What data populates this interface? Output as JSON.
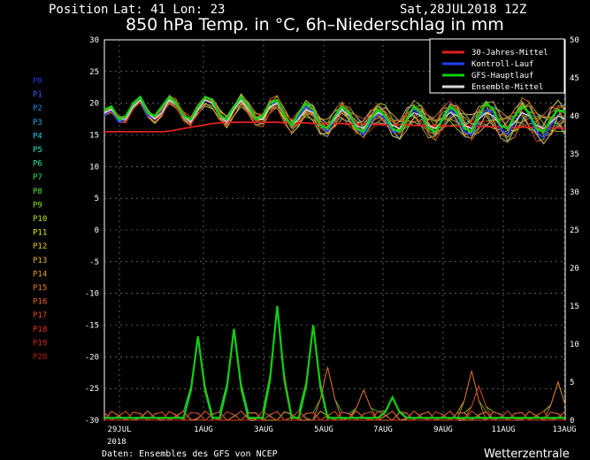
{
  "header": {
    "position_label": "Position",
    "lat_lon": "Lat: 41 Lon: 23",
    "run_time": "Sat,28JUL2018 12Z"
  },
  "footer": {
    "source": "Daten: Ensembles des GFS von NCEP",
    "brand": "Wetterzentrale"
  },
  "chart_data": {
    "type": "line",
    "title": "850 hPa Temp. in °C, 6h–Niederschlag in mm",
    "y_left": {
      "min": -30,
      "max": 30,
      "step": 5,
      "ticks": [
        "-30",
        "-25",
        "-20",
        "-15",
        "-10",
        "-5",
        "0",
        "5",
        "10",
        "15",
        "20",
        "25",
        "30"
      ]
    },
    "y_right": {
      "min": 0,
      "max": 50,
      "step": 5,
      "ticks": [
        "0",
        "5",
        "10",
        "15",
        "20",
        "25",
        "30",
        "35",
        "40",
        "45",
        "50"
      ]
    },
    "x_ticks": [
      "29JUL",
      "1AUG",
      "3AUG",
      "5AUG",
      "7AUG",
      "9AUG",
      "11AUG",
      "13AUG"
    ],
    "x_sublabel": "2018",
    "grid": true,
    "legend_position": "top-right",
    "legend": [
      {
        "label": "30-Jahres-Mittel",
        "color": "#e02020"
      },
      {
        "label": "Kontroll-Lauf",
        "color": "#2040ff"
      },
      {
        "label": "GFS-Hauptlauf",
        "color": "#10d010"
      },
      {
        "label": "Ensemble-Mittel",
        "color": "#d8d8d8"
      }
    ],
    "members": [
      {
        "label": "P0",
        "color": "#2e2ee8"
      },
      {
        "label": "P1",
        "color": "#2e5ce8"
      },
      {
        "label": "P2",
        "color": "#1f86e8"
      },
      {
        "label": "P3",
        "color": "#1fa8e8"
      },
      {
        "label": "P4",
        "color": "#1fcde8"
      },
      {
        "label": "P5",
        "color": "#1fe8cf"
      },
      {
        "label": "P6",
        "color": "#1fe88f"
      },
      {
        "label": "P7",
        "color": "#1fe84d"
      },
      {
        "label": "P8",
        "color": "#49e81f"
      },
      {
        "label": "P9",
        "color": "#86e81f"
      },
      {
        "label": "P10",
        "color": "#bce81f"
      },
      {
        "label": "P11",
        "color": "#e8e81f"
      },
      {
        "label": "P12",
        "color": "#e8cf1f"
      },
      {
        "label": "P13",
        "color": "#e8b41f"
      },
      {
        "label": "P14",
        "color": "#e89a1f"
      },
      {
        "label": "P15",
        "color": "#e8801f"
      },
      {
        "label": "P16",
        "color": "#e8661f"
      },
      {
        "label": "P17",
        "color": "#e84c1f"
      },
      {
        "label": "P18",
        "color": "#e8321f"
      },
      {
        "label": "P19",
        "color": "#d82020"
      },
      {
        "label": "P20",
        "color": "#b81818"
      }
    ],
    "series": [
      {
        "name": "30-Jahres-Mittel",
        "values": [
          15.5,
          15.5,
          15.5,
          15.5,
          15.5,
          15.5,
          15.5,
          15.5,
          15.5,
          15.6,
          15.8,
          16.0,
          16.2,
          16.4,
          16.6,
          16.8,
          16.9,
          17.0,
          17.0,
          17.0,
          17.0,
          17.0,
          17.0,
          17.0,
          17.0,
          16.9,
          16.9,
          16.9,
          16.9,
          16.8,
          16.8,
          16.8,
          16.8,
          16.8,
          16.7,
          16.7,
          16.7,
          16.7,
          16.6,
          16.6,
          16.6,
          16.6,
          16.6,
          16.5,
          16.5,
          16.5,
          16.5,
          16.5,
          16.4,
          16.4,
          16.4,
          16.4,
          16.3,
          16.3,
          16.3,
          16.3,
          16.2,
          16.2,
          16.2,
          16.2,
          16.1,
          16.1,
          16.1,
          16.1,
          16.0
        ]
      },
      {
        "name": "Kontroll-Lauf",
        "values": [
          18.0,
          19.0,
          17.0,
          17.5,
          19.5,
          20.5,
          18.0,
          17.5,
          18.5,
          20.5,
          20.0,
          18.0,
          17.0,
          19.0,
          20.5,
          20.0,
          18.0,
          17.0,
          19.5,
          20.5,
          19.0,
          17.5,
          18.0,
          20.0,
          20.0,
          18.0,
          16.5,
          18.0,
          19.5,
          18.5,
          16.5,
          15.5,
          17.5,
          19.0,
          18.0,
          16.0,
          15.0,
          17.0,
          18.5,
          17.5,
          15.5,
          15.5,
          17.5,
          19.0,
          18.0,
          16.0,
          15.5,
          17.5,
          19.0,
          18.0,
          15.5,
          15.0,
          17.5,
          19.0,
          18.5,
          16.0,
          15.0,
          17.0,
          18.5,
          18.0,
          15.5,
          14.5,
          16.5,
          18.0,
          17.5
        ]
      },
      {
        "name": "GFS-Hauptlauf",
        "values": [
          19.0,
          19.5,
          17.5,
          18.0,
          20.0,
          21.0,
          18.5,
          18.0,
          19.5,
          21.0,
          20.0,
          18.0,
          17.5,
          19.5,
          21.0,
          20.5,
          18.0,
          17.5,
          19.5,
          21.0,
          19.5,
          17.5,
          18.0,
          20.0,
          20.5,
          18.0,
          16.5,
          18.5,
          20.0,
          19.0,
          16.5,
          16.0,
          18.0,
          19.5,
          18.5,
          16.0,
          15.5,
          17.5,
          19.0,
          18.0,
          16.0,
          15.5,
          17.5,
          19.5,
          18.5,
          16.0,
          15.5,
          17.5,
          19.5,
          18.5,
          16.0,
          15.5,
          18.0,
          20.0,
          19.0,
          16.5,
          16.0,
          18.0,
          19.5,
          18.5,
          16.0,
          15.5,
          17.5,
          19.0,
          18.5
        ]
      },
      {
        "name": "Ensemble-Mittel",
        "values": [
          18.5,
          19.0,
          17.5,
          17.5,
          19.5,
          20.5,
          18.5,
          17.5,
          18.5,
          20.5,
          20.0,
          18.0,
          17.0,
          19.0,
          20.5,
          20.0,
          18.0,
          17.0,
          19.0,
          20.5,
          19.0,
          17.5,
          17.5,
          19.5,
          20.0,
          18.0,
          16.5,
          17.5,
          19.0,
          18.5,
          16.5,
          16.0,
          17.5,
          19.0,
          18.0,
          16.5,
          16.0,
          17.5,
          18.5,
          18.0,
          16.5,
          16.0,
          17.5,
          18.5,
          18.0,
          16.5,
          16.0,
          17.5,
          18.5,
          18.0,
          16.5,
          16.0,
          17.5,
          18.5,
          18.0,
          16.5,
          16.0,
          17.0,
          18.5,
          18.0,
          16.5,
          16.0,
          17.0,
          18.0,
          17.5
        ]
      }
    ]
  }
}
